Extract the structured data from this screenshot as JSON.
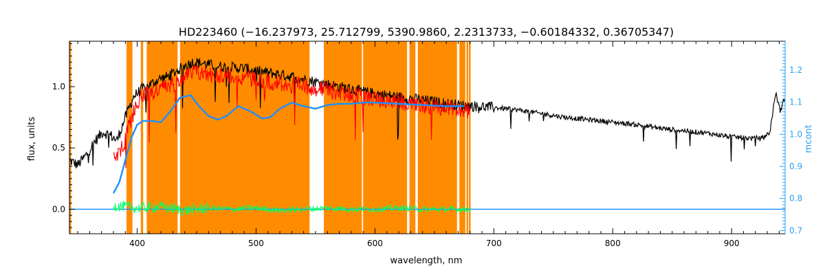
{
  "chart_data": {
    "type": "line",
    "title": "HD223460   (−16.237973, 25.712799, 5390.9860, 2.2313733, −0.60184332, 0.36705347)",
    "xlabel": "wavelength, nm",
    "ylabel": "flux, units",
    "ylabel_right": "mcont",
    "xlim": [
      343,
      945
    ],
    "ylim": [
      -0.2,
      1.37
    ],
    "ylim_right": [
      0.69,
      1.29
    ],
    "x_ticks": [
      400,
      500,
      600,
      700,
      800,
      900
    ],
    "x_tick_labels": [
      "400",
      "500",
      "600",
      "700",
      "800",
      "900"
    ],
    "y_ticks": [
      0.0,
      0.5,
      1.0
    ],
    "y_tick_labels": [
      "0.0",
      "0.5",
      "1.0"
    ],
    "y_right_ticks": [
      0.7,
      0.8,
      0.9,
      1.0,
      1.1,
      1.2
    ],
    "y_right_tick_labels": [
      "0.7",
      "0.8",
      "0.9",
      "1.0",
      "1.1",
      "1.2"
    ],
    "colors": {
      "observed": "#000000",
      "model": "#ff0000",
      "residual": "#00ff66",
      "continuum": "#1f8fff",
      "masked": "#ff8c00",
      "right_axis": "#2aa0f0"
    },
    "masked_regions_nm": [
      343,
      344,
      391,
      396,
      403,
      405,
      408,
      434,
      436,
      545,
      557,
      589,
      590,
      627,
      629,
      634,
      636,
      669,
      671,
      676,
      677,
      678,
      679,
      680
    ],
    "series": [
      {
        "key": "observed",
        "x": [
          343,
          350,
          357,
          364,
          371,
          378,
          383,
          390,
          397,
          404,
          410,
          418,
          425,
          432,
          440,
          447,
          455,
          465,
          475,
          490,
          505,
          520,
          535,
          550,
          565,
          580,
          595,
          610,
          625,
          640,
          655,
          670,
          685,
          700,
          720,
          740,
          760,
          780,
          800,
          820,
          840,
          860,
          880,
          900,
          915,
          925,
          932,
          937,
          941,
          945
        ],
        "y": [
          0.4,
          0.36,
          0.44,
          0.55,
          0.63,
          0.6,
          0.56,
          0.75,
          0.92,
          0.98,
          1.01,
          1.06,
          1.08,
          1.12,
          1.17,
          1.2,
          1.19,
          1.17,
          1.16,
          1.15,
          1.12,
          1.1,
          1.07,
          1.04,
          1.01,
          0.98,
          0.95,
          0.93,
          0.91,
          0.89,
          0.87,
          0.85,
          0.84,
          0.83,
          0.81,
          0.78,
          0.75,
          0.73,
          0.71,
          0.69,
          0.66,
          0.64,
          0.62,
          0.59,
          0.58,
          0.58,
          0.62,
          0.95,
          0.8,
          0.92
        ]
      },
      {
        "key": "model",
        "x": [
          380,
          388,
          395,
          402,
          410,
          420,
          430,
          440,
          450,
          460,
          475,
          490,
          505,
          520,
          535,
          550,
          565,
          580,
          595,
          610,
          625,
          640,
          655,
          670,
          680
        ],
        "y": [
          0.45,
          0.55,
          0.78,
          0.95,
          0.98,
          1.02,
          1.06,
          1.12,
          1.16,
          1.14,
          1.13,
          1.12,
          1.09,
          1.07,
          1.05,
          1.03,
          1.0,
          0.97,
          0.95,
          0.93,
          0.91,
          0.89,
          0.87,
          0.86,
          0.85
        ]
      },
      {
        "key": "continuum",
        "x": [
          380,
          385,
          390,
          395,
          400,
          405,
          412,
          420,
          428,
          436,
          445,
          452,
          460,
          468,
          475,
          485,
          495,
          505,
          512,
          520,
          530,
          540,
          550,
          560,
          570,
          580,
          590,
          600,
          620,
          640,
          660,
          675
        ],
        "y": [
          0.13,
          0.22,
          0.4,
          0.58,
          0.69,
          0.72,
          0.72,
          0.71,
          0.8,
          0.91,
          0.93,
          0.84,
          0.76,
          0.73,
          0.76,
          0.84,
          0.8,
          0.74,
          0.75,
          0.82,
          0.87,
          0.84,
          0.82,
          0.85,
          0.86,
          0.86,
          0.87,
          0.87,
          0.86,
          0.85,
          0.84,
          0.84
        ]
      },
      {
        "key": "residual",
        "x": [
          380,
          400,
          420,
          440,
          460,
          480,
          500,
          520,
          540,
          560,
          580,
          600,
          620,
          640,
          660,
          680
        ],
        "y": [
          0.03,
          0.01,
          0.02,
          -0.01,
          0.01,
          0.0,
          0.01,
          -0.01,
          0.0,
          0.01,
          0.0,
          0.0,
          0.01,
          0.0,
          0.0,
          0.0
        ]
      }
    ]
  }
}
